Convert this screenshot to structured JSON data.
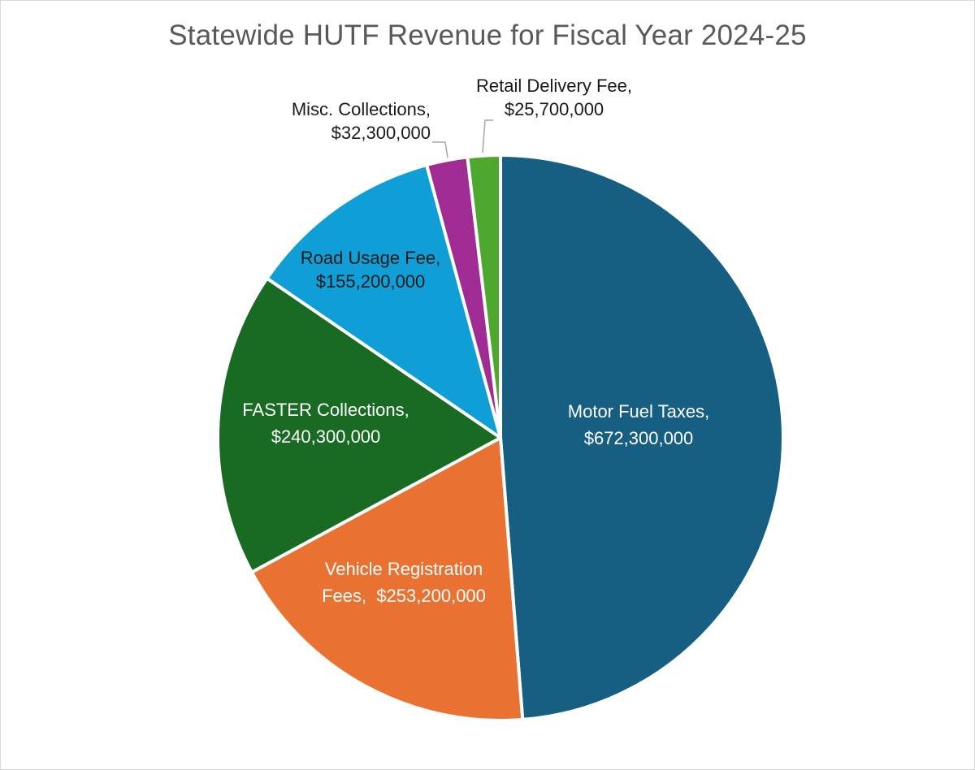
{
  "chart_data": {
    "type": "pie",
    "title": "Statewide HUTF Revenue for Fiscal Year 2024-25",
    "slices": [
      {
        "name": "Motor Fuel Taxes",
        "value": 672300000,
        "label_line1": "Motor Fuel Taxes,",
        "label_line2": "$672,300,000",
        "color": "#175f82",
        "label_color": "#ffffff"
      },
      {
        "name": "Vehicle Registration Fees",
        "value": 253200000,
        "label_line1": "Vehicle Registration",
        "label_line2": "Fees,  $253,200,000",
        "color": "#e97132",
        "label_color": "#ffffff"
      },
      {
        "name": "FASTER Collections",
        "value": 240300000,
        "label_line1": "FASTER Collections,",
        "label_line2": "$240,300,000",
        "color": "#196b24",
        "label_color": "#ffffff"
      },
      {
        "name": "Road Usage Fee",
        "value": 155200000,
        "label_line1": "Road Usage Fee,",
        "label_line2": "$155,200,000",
        "color": "#0f9ed5",
        "label_color": "#1a1a1a"
      },
      {
        "name": "Misc. Collections",
        "value": 32300000,
        "label_line1": "Misc. Collections,",
        "label_line2": "$32,300,000",
        "color": "#a02b93",
        "label_color": "#1a1a1a"
      },
      {
        "name": "Retail Delivery Fee",
        "value": 25700000,
        "label_line1": "Retail Delivery Fee,",
        "label_line2": "$25,700,000",
        "color": "#4ea72e",
        "label_color": "#1a1a1a"
      }
    ],
    "start_angle": "12 o'clock",
    "direction": "clockwise",
    "legend": "none",
    "data_labels": "category name and value"
  }
}
